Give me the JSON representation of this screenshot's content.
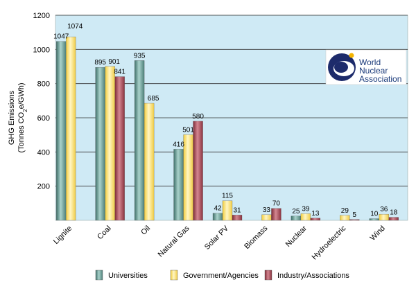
{
  "chart_data": {
    "type": "bar",
    "title": "",
    "ylabel_line1": "GHG Emissions",
    "ylabel_line2_prefix": "(Tonnes CO",
    "ylabel_line2_sub": "2",
    "ylabel_line2_suffix": "e/GWh)",
    "xlabel": "",
    "ylim": [
      0,
      1200
    ],
    "yticks": [
      200,
      400,
      600,
      800,
      1000,
      1200
    ],
    "grid": true,
    "legend_position": "bottom",
    "categories": [
      "Lignite",
      "Coal",
      "Oil",
      "Natural Gas",
      "Solar PV",
      "Biomass",
      "Nuclear",
      "Hydroelectric",
      "Wind"
    ],
    "series": [
      {
        "name": "Universities",
        "color": "#6fa39a",
        "values": [
          1047,
          895,
          935,
          416,
          42,
          null,
          25,
          null,
          10
        ]
      },
      {
        "name": "Government/Agencies",
        "color": "#ffe680",
        "values": [
          1074,
          901,
          685,
          501,
          115,
          33,
          39,
          29,
          36
        ]
      },
      {
        "name": "Industry/Associations",
        "color": "#b04a58",
        "values": [
          null,
          841,
          null,
          580,
          31,
          70,
          13,
          5,
          18
        ]
      }
    ],
    "colors": {
      "plot_background": "#cfeaf5",
      "grid": "#333333"
    }
  },
  "logo": {
    "line1": "World",
    "line2": "Nuclear",
    "line3": "Association"
  }
}
